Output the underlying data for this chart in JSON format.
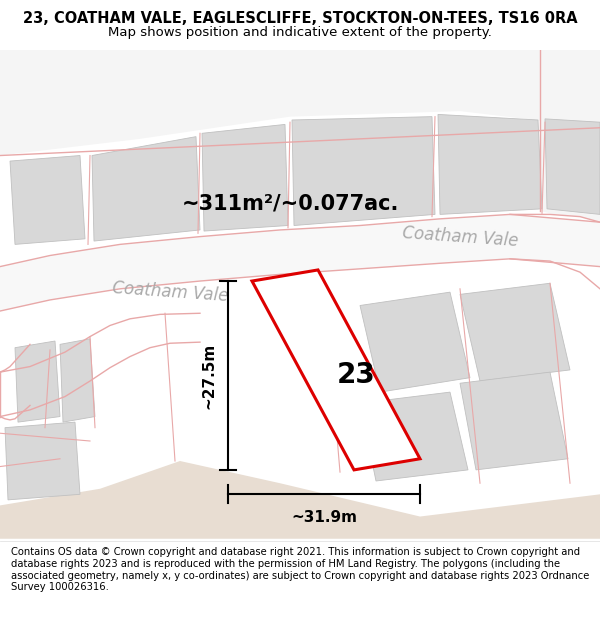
{
  "title": "23, COATHAM VALE, EAGLESCLIFFE, STOCKTON-ON-TEES, TS16 0RA",
  "subtitle": "Map shows position and indicative extent of the property.",
  "area_text": "~311m²/~0.077ac.",
  "label_number": "23",
  "dim_width": "~31.9m",
  "dim_height": "~27.5m",
  "road_label1": "Coatham Vale",
  "road_label2": "Coatham Vale",
  "footer": "Contains OS data © Crown copyright and database right 2021. This information is subject to Crown copyright and database rights 2023 and is reproduced with the permission of HM Land Registry. The polygons (including the associated geometry, namely x, y co-ordinates) are subject to Crown copyright and database rights 2023 Ordnance Survey 100026316.",
  "map_bg": "#ffffff",
  "road_fill": "#ffffff",
  "road_color": "#e8a8a8",
  "building_color": "#d8d8d8",
  "building_edge": "#c0c0c0",
  "property_color": "#dd0000",
  "beige_color": "#e8ddd2",
  "title_fontsize": 10.5,
  "subtitle_fontsize": 9.5,
  "area_fontsize": 15,
  "label_fontsize": 20,
  "dim_fontsize": 11,
  "road_fontsize": 12,
  "footer_fontsize": 7.2
}
